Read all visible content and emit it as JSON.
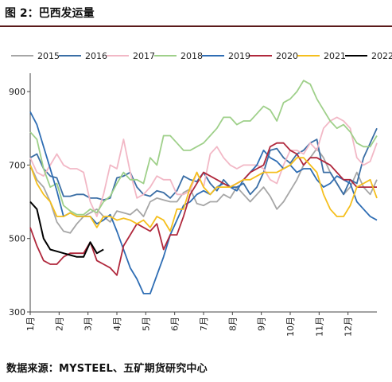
{
  "header": {
    "title": "图 2：巴西发运量"
  },
  "footer": {
    "source": "数据来源：MYSTEEL、五矿期货研究中心"
  },
  "chart_data": {
    "type": "line",
    "title": "图 2：巴西发运量",
    "xlabel": "",
    "ylabel": "",
    "ylim": [
      300,
      950
    ],
    "yticks": [
      300,
      500,
      700,
      900
    ],
    "xlim": [
      1,
      53
    ],
    "xtick_labels": [
      "1月",
      "2月",
      "3月",
      "4月",
      "5月",
      "6月",
      "7月",
      "8月",
      "9月",
      "10月",
      "11月",
      "12月"
    ],
    "grid": false,
    "legend_position": "top",
    "series": [
      {
        "name": "2015",
        "color": "#a6a6a6",
        "x": [
          1,
          2,
          3,
          4,
          5,
          6,
          7,
          8,
          9,
          10,
          11,
          12,
          13,
          14,
          15,
          16,
          17,
          18,
          19,
          20,
          21,
          22,
          23,
          24,
          25,
          26,
          27,
          28,
          29,
          30,
          31,
          32,
          33,
          34,
          35,
          36,
          37,
          38,
          39,
          40,
          41,
          42,
          43,
          44,
          45,
          46,
          47,
          48,
          49,
          50,
          51,
          52,
          53
        ],
        "values": [
          700,
          660,
          640,
          600,
          545,
          520,
          515,
          540,
          560,
          570,
          580,
          560,
          545,
          575,
          570,
          565,
          580,
          560,
          600,
          610,
          605,
          600,
          600,
          625,
          635,
          595,
          590,
          600,
          600,
          620,
          610,
          640,
          620,
          600,
          620,
          640,
          615,
          580,
          600,
          630,
          660,
          700,
          720,
          745,
          720,
          680,
          650,
          620,
          640,
          680,
          640,
          620,
          660
        ]
      },
      {
        "name": "2016",
        "color": "#3a6ea5",
        "x": [
          1,
          2,
          3,
          4,
          5,
          6,
          7,
          8,
          9,
          10,
          11,
          12,
          13,
          14,
          15,
          16,
          17,
          18,
          19,
          20,
          21,
          22,
          23,
          24,
          25,
          26,
          27,
          28,
          29,
          30,
          31,
          32,
          33,
          34,
          35,
          36,
          37,
          38,
          39,
          40,
          41,
          42,
          43,
          44,
          45,
          46,
          47,
          48,
          49,
          50,
          51,
          52,
          53
        ],
        "values": [
          720,
          730,
          690,
          670,
          665,
          615,
          615,
          620,
          620,
          610,
          610,
          605,
          610,
          665,
          670,
          680,
          640,
          620,
          615,
          630,
          625,
          610,
          630,
          670,
          660,
          655,
          680,
          650,
          630,
          660,
          640,
          640,
          650,
          620,
          640,
          680,
          740,
          745,
          720,
          705,
          730,
          740,
          760,
          770,
          680,
          680,
          650,
          620,
          660,
          650,
          720,
          760,
          800
        ]
      },
      {
        "name": "2017",
        "color": "#f2b8c6",
        "x": [
          1,
          2,
          3,
          4,
          5,
          6,
          7,
          8,
          9,
          10,
          11,
          12,
          13,
          14,
          15,
          16,
          17,
          18,
          19,
          20,
          21,
          22,
          23,
          24,
          25,
          26,
          27,
          28,
          29,
          30,
          31,
          32,
          33,
          34,
          35,
          36,
          37,
          38,
          39,
          40,
          41,
          42,
          43,
          44,
          45,
          46,
          47,
          48,
          49,
          50,
          51,
          52,
          53
        ],
        "values": [
          720,
          680,
          670,
          700,
          730,
          700,
          690,
          690,
          680,
          600,
          560,
          620,
          700,
          690,
          770,
          680,
          610,
          620,
          640,
          670,
          660,
          660,
          620,
          620,
          630,
          680,
          640,
          730,
          750,
          720,
          700,
          690,
          700,
          700,
          700,
          690,
          660,
          650,
          700,
          740,
          740,
          730,
          760,
          740,
          800,
          820,
          830,
          820,
          800,
          720,
          700,
          710,
          760
        ]
      },
      {
        "name": "2018",
        "color": "#9fd08a",
        "x": [
          1,
          2,
          3,
          4,
          5,
          6,
          7,
          8,
          9,
          10,
          11,
          12,
          13,
          14,
          15,
          16,
          17,
          18,
          19,
          20,
          21,
          22,
          23,
          24,
          25,
          26,
          27,
          28,
          29,
          30,
          31,
          32,
          33,
          34,
          35,
          36,
          37,
          38,
          39,
          40,
          41,
          42,
          43,
          44,
          45,
          46,
          47,
          48,
          49,
          50,
          51,
          52,
          53
        ],
        "values": [
          790,
          770,
          690,
          640,
          650,
          590,
          575,
          565,
          565,
          580,
          570,
          600,
          615,
          650,
          680,
          660,
          660,
          650,
          720,
          700,
          780,
          780,
          760,
          740,
          740,
          750,
          760,
          780,
          800,
          830,
          830,
          810,
          820,
          820,
          840,
          860,
          850,
          820,
          870,
          880,
          900,
          930,
          920,
          880,
          850,
          820,
          800,
          810,
          790,
          760,
          750,
          750,
          780
        ]
      },
      {
        "name": "2019",
        "color": "#2e6db4",
        "x": [
          1,
          2,
          3,
          4,
          5,
          6,
          7,
          8,
          9,
          10,
          11,
          12,
          13,
          14,
          15,
          16,
          17,
          18,
          19,
          20,
          21,
          22,
          23,
          24,
          25,
          26,
          27,
          28,
          29,
          30,
          31,
          32,
          33,
          34,
          35,
          36,
          37,
          38,
          39,
          40,
          41,
          42,
          43,
          44,
          45,
          46,
          47,
          48,
          49,
          50,
          51,
          52,
          53
        ],
        "values": [
          845,
          810,
          750,
          690,
          630,
          560,
          570,
          560,
          560,
          560,
          540,
          550,
          565,
          520,
          470,
          420,
          390,
          350,
          350,
          400,
          450,
          510,
          550,
          590,
          600,
          620,
          630,
          620,
          640,
          650,
          640,
          630,
          660,
          680,
          700,
          740,
          720,
          710,
          690,
          700,
          680,
          690,
          690,
          660,
          640,
          650,
          670,
          660,
          650,
          600,
          580,
          560,
          550
        ]
      },
      {
        "name": "2020",
        "color": "#b0283c",
        "x": [
          1,
          2,
          3,
          4,
          5,
          6,
          7,
          8,
          9,
          10,
          11,
          12,
          13,
          14,
          15,
          16,
          17,
          18,
          19,
          20,
          21,
          22,
          23,
          24,
          25,
          26,
          27,
          28,
          29,
          30,
          31,
          32,
          33,
          34,
          35,
          36,
          37,
          38,
          39,
          40,
          41,
          42,
          43,
          44,
          45,
          46,
          47,
          48,
          49,
          50,
          51,
          52,
          53
        ],
        "values": [
          530,
          480,
          440,
          430,
          430,
          450,
          460,
          460,
          460,
          490,
          440,
          430,
          420,
          400,
          480,
          510,
          540,
          530,
          520,
          540,
          470,
          510,
          510,
          560,
          620,
          650,
          680,
          670,
          660,
          650,
          640,
          650,
          660,
          680,
          690,
          700,
          750,
          760,
          760,
          740,
          730,
          700,
          720,
          720,
          710,
          700,
          680,
          660,
          660,
          640,
          640,
          640,
          640
        ]
      },
      {
        "name": "2021",
        "color": "#f5bf1d",
        "x": [
          1,
          2,
          3,
          4,
          5,
          6,
          7,
          8,
          9,
          10,
          11,
          12,
          13,
          14,
          15,
          16,
          17,
          18,
          19,
          20,
          21,
          22,
          23,
          24,
          25,
          26,
          27,
          28,
          29,
          30,
          31,
          32,
          33,
          34,
          35,
          36,
          37,
          38,
          39,
          40,
          41,
          42,
          43,
          44,
          45,
          46,
          47,
          48,
          49,
          50,
          51,
          52,
          53
        ],
        "values": [
          700,
          650,
          620,
          600,
          560,
          560,
          570,
          560,
          560,
          560,
          530,
          560,
          560,
          550,
          555,
          550,
          540,
          550,
          530,
          560,
          550,
          520,
          580,
          580,
          640,
          680,
          640,
          620,
          640,
          640,
          640,
          650,
          660,
          660,
          670,
          680,
          680,
          680,
          690,
          700,
          720,
          720,
          700,
          680,
          620,
          580,
          560,
          560,
          590,
          640,
          650,
          660,
          610
        ]
      },
      {
        "name": "2022",
        "color": "#000000",
        "x": [
          1,
          2,
          3,
          4,
          5,
          6,
          7,
          8,
          9,
          10,
          11,
          12
        ],
        "values": [
          600,
          580,
          500,
          470,
          465,
          460,
          455,
          450,
          450,
          490,
          460,
          470
        ]
      }
    ]
  }
}
